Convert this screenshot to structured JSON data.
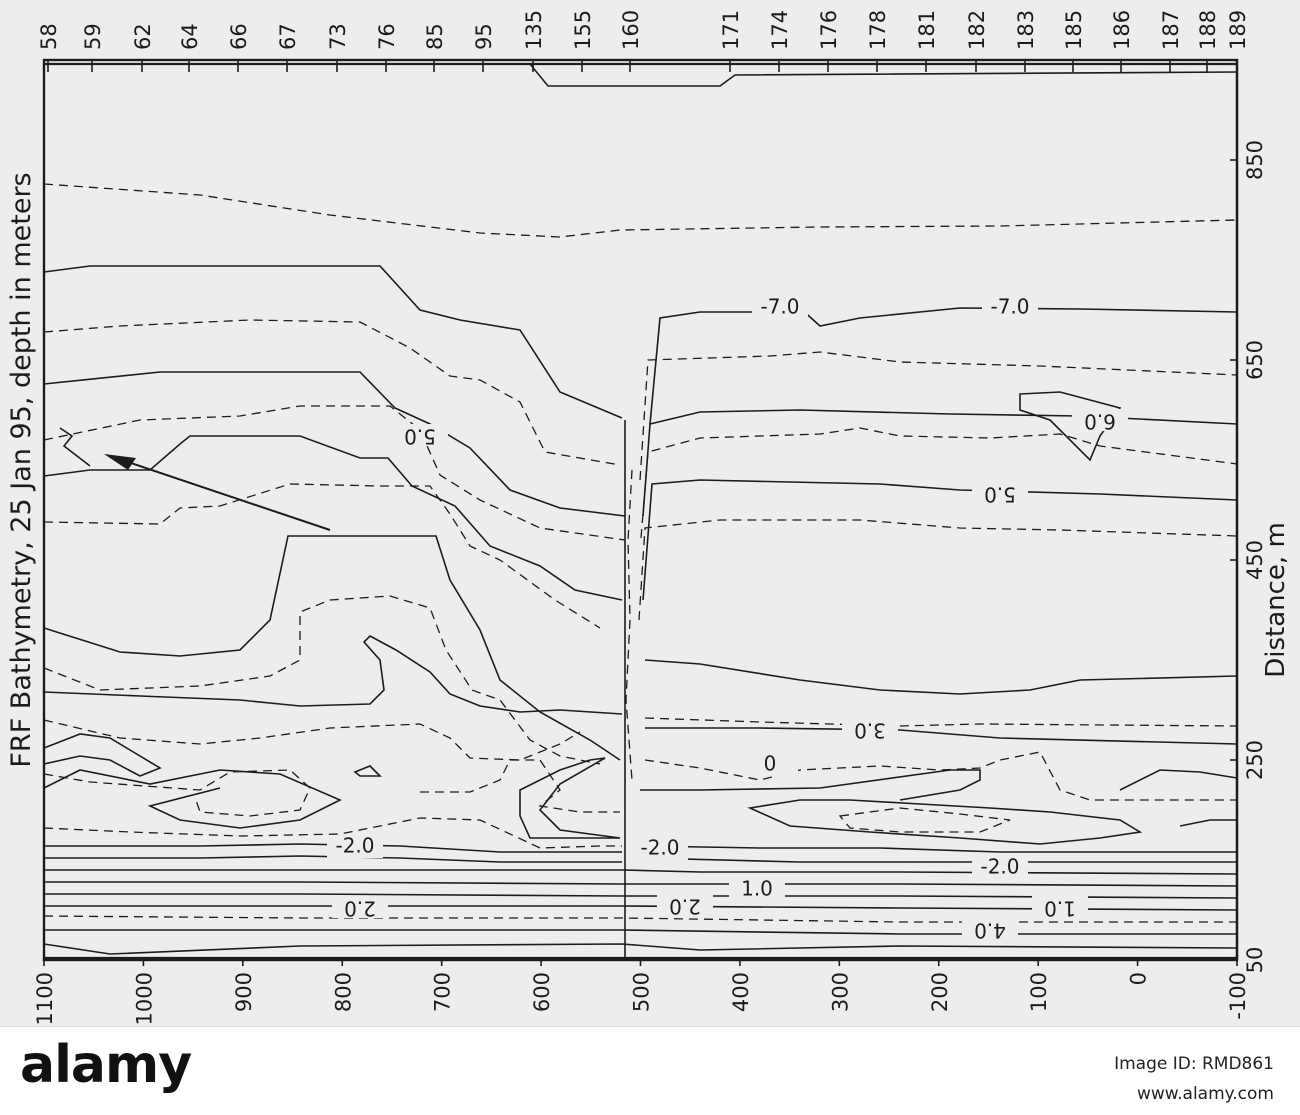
{
  "chart_data": {
    "type": "contour",
    "title": "FRF Bathymetry, 25 Jan 95, depth in meters",
    "xlabel": "Distance, m",
    "x_ticks": [
      "50",
      "250",
      "450",
      "650",
      "850"
    ],
    "y_ticks": [
      "1100",
      "1000",
      "900",
      "800",
      "700",
      "600",
      "500",
      "400",
      "300",
      "200",
      "100",
      "0",
      "-100"
    ],
    "profile_lines": [
      "58",
      "59",
      "62",
      "64",
      "66",
      "67",
      "73",
      "76",
      "85",
      "95",
      "135",
      "155",
      "160",
      "171",
      "174",
      "176",
      "178",
      "181",
      "182",
      "183",
      "185",
      "186",
      "187",
      "188",
      "189"
    ],
    "xlim": [
      50,
      950
    ],
    "ylim": [
      -100,
      1100
    ],
    "contour_labels": [
      "-7.0",
      "-7.0",
      "6.0",
      "5.0",
      "5.0",
      "3.0",
      "0",
      "-2.0",
      "-2.0",
      "-2.0",
      "1.0",
      "2.0",
      "2.0",
      "1.0",
      "4.0"
    ],
    "grid": false,
    "orientation": "rotated 90 degrees"
  },
  "footer": {
    "logo": "alamy",
    "image_id_label": "Image ID: RMD861",
    "website": "www.alamy.com"
  },
  "colors": {
    "figure_background": "#ededed",
    "ink": "#1c1c1c",
    "footer_background": "#ffffff"
  }
}
